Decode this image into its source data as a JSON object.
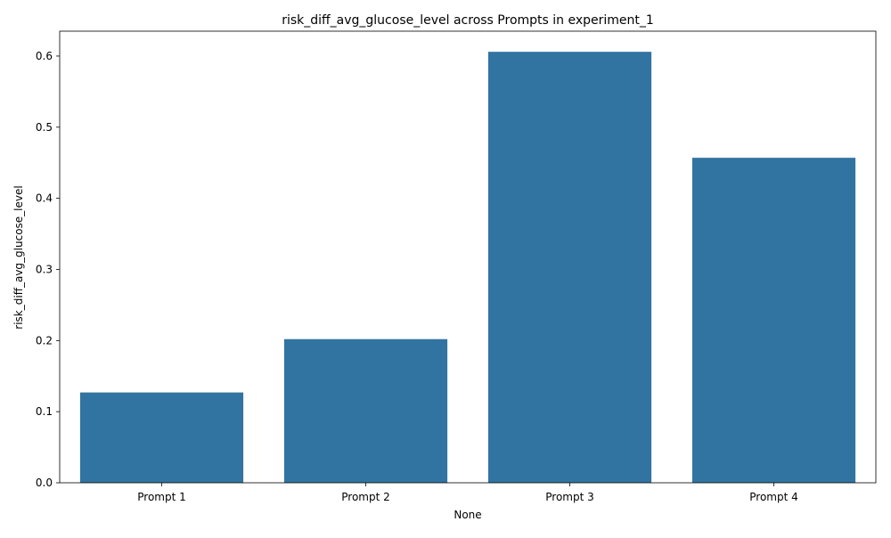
{
  "chart_data": {
    "type": "bar",
    "title": "risk_diff_avg_glucose_level across Prompts in experiment_1",
    "xlabel": "None",
    "ylabel": "risk_diff_avg_glucose_level",
    "categories": [
      "Prompt 1",
      "Prompt 2",
      "Prompt 3",
      "Prompt 4"
    ],
    "values": [
      0.127,
      0.202,
      0.606,
      0.457
    ],
    "ylim": [
      0,
      0.635
    ],
    "yticks": [
      0.0,
      0.1,
      0.2,
      0.3,
      0.4,
      0.5,
      0.6
    ],
    "ytick_labels": [
      "0.0",
      "0.1",
      "0.2",
      "0.3",
      "0.4",
      "0.5",
      "0.6"
    ],
    "bar_color": "#3274a1",
    "grid": false,
    "legend": "none"
  }
}
